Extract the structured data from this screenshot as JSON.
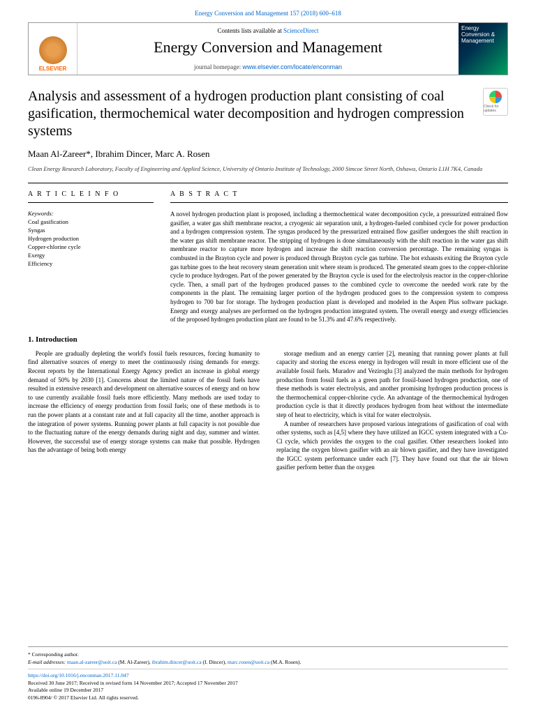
{
  "citation": {
    "text": "Energy Conversion and Management 157 (2018) 600–618",
    "url_color": "#0066cc"
  },
  "header": {
    "contents_prefix": "Contents lists available at ",
    "contents_link": "ScienceDirect",
    "journal": "Energy Conversion and Management",
    "homepage_prefix": "journal homepage: ",
    "homepage_url": "www.elsevier.com/locate/enconman",
    "publisher": "ELSEVIER",
    "cover_title": "Energy Conversion & Management"
  },
  "title": "Analysis and assessment of a hydrogen production plant consisting of coal gasification, thermochemical water decomposition and hydrogen compression systems",
  "check_updates_label": "Check for updates",
  "authors": "Maan Al-Zareer*, Ibrahim Dincer, Marc A. Rosen",
  "affiliation": "Clean Energy Research Laboratory, Faculty of Engineering and Applied Science, University of Ontario Institute of Technology, 2000 Simcoe Street North, Oshawa, Ontario L1H 7K4, Canada",
  "article_info": {
    "head": "A R T I C L E   I N F O",
    "keywords_label": "Keywords:",
    "keywords": [
      "Coal gasification",
      "Syngas",
      "Hydrogen production",
      "Copper-chlorine cycle",
      "Exergy",
      "Efficiency"
    ]
  },
  "abstract": {
    "head": "A B S T R A C T",
    "text": "A novel hydrogen production plant is proposed, including a thermochemical water decomposition cycle, a pressurized entrained flow gasifier, a water gas shift membrane reactor, a cryogenic air separation unit, a hydrogen-fueled combined cycle for power production and a hydrogen compression system. The syngas produced by the pressurized entrained flow gasifier undergoes the shift reaction in the water gas shift membrane reactor. The stripping of hydrogen is done simultaneously with the shift reaction in the water gas shift membrane reactor to capture more hydrogen and increase the shift reaction conversion percentage. The remaining syngas is combusted in the Brayton cycle and power is produced through Brayton cycle gas turbine. The hot exhausts exiting the Brayton cycle gas turbine goes to the heat recovery steam generation unit where steam is produced. The generated steam goes to the copper-chlorine cycle to produce hydrogen. Part of the power generated by the Brayton cycle is used for the electrolysis reactor in the copper-chlorine cycle. Then, a small part of the hydrogen produced passes to the combined cycle to overcome the needed work rate by the components in the plant. The remaining larger portion of the hydrogen produced goes to the compression system to compress hydrogen to 700 bar for storage. The hydrogen production plant is developed and modeled in the Aspen Plus software package. Energy and exergy analyses are performed on the hydrogen production integrated system. The overall energy and exergy efficiencies of the proposed hydrogen production plant are found to be 51.3% and 47.6% respectively."
  },
  "section1": {
    "head": "1. Introduction"
  },
  "col1_p1": "People are gradually depleting the world's fossil fuels resources, forcing humanity to find alternative sources of energy to meet the continuously rising demands for energy. Recent reports by the International Energy Agency predict an increase in global energy demand of 50% by 2030 [1]. Concerns about the limited nature of the fossil fuels have resulted in extensive research and development on alternative sources of energy and on how to use currently available fossil fuels more efficiently. Many methods are used today to increase the efficiency of energy production from fossil fuels; one of these methods is to run the power plants at a constant rate and at full capacity all the time, another approach is the integration of power systems. Running power plants at full capacity is not possible due to the fluctuating nature of the energy demands during night and day, summer and winter. However, the successful use of energy storage systems can make that possible. Hydrogen has the advantage of being both energy",
  "col2_p1": "storage medium and an energy carrier [2], meaning that running power plants at full capacity and storing the excess energy in hydrogen will result in more efficient use of the available fossil fuels. Muradov and Veziroglu [3] analyzed the main methods for hydrogen production from fossil fuels as a green path for fossil-based hydrogen production, one of these methods is water electrolysis, and another promising hydrogen production process is the thermochemical copper-chlorine cycle. An advantage of the thermochemical hydrogen production cycle is that it directly produces hydrogen from heat without the intermediate step of heat to electricity, which is vital for water electrolysis.",
  "col2_p2": "A number of researchers have proposed various integrations of gasification of coal with other systems, such as [4,5] where they have utilized an IGCC system integrated with a Cu-Cl cycle, which provides the oxygen to the coal gasifier. Other researchers looked into replacing the oxygen blown gasifier with an air blown gasifier, and they have investigated the IGCC system performance under each [7]. They have found out that the air blown gasifier perform better than the oxygen",
  "footer": {
    "corr_label": "* Corresponding author.",
    "email_label": "E-mail addresses: ",
    "emails": [
      {
        "addr": "maan.al-zareer@uoit.ca",
        "name": "(M. Al-Zareer)"
      },
      {
        "addr": "ibrahim.dincer@uoit.ca",
        "name": "(I. Dincer)"
      },
      {
        "addr": "marc.rosen@uoit.ca",
        "name": "(M.A. Rosen)."
      }
    ],
    "doi": "https://doi.org/10.1016/j.enconman.2017.11.047",
    "received": "Received 30 June 2017; Received in revised form 14 November 2017; Accepted 17 November 2017",
    "available": "Available online 19 December 2017",
    "copyright": "0196-8904/ © 2017 Elsevier Ltd. All rights reserved."
  },
  "colors": {
    "link": "#0066cc",
    "text": "#000000",
    "border": "#999999"
  }
}
